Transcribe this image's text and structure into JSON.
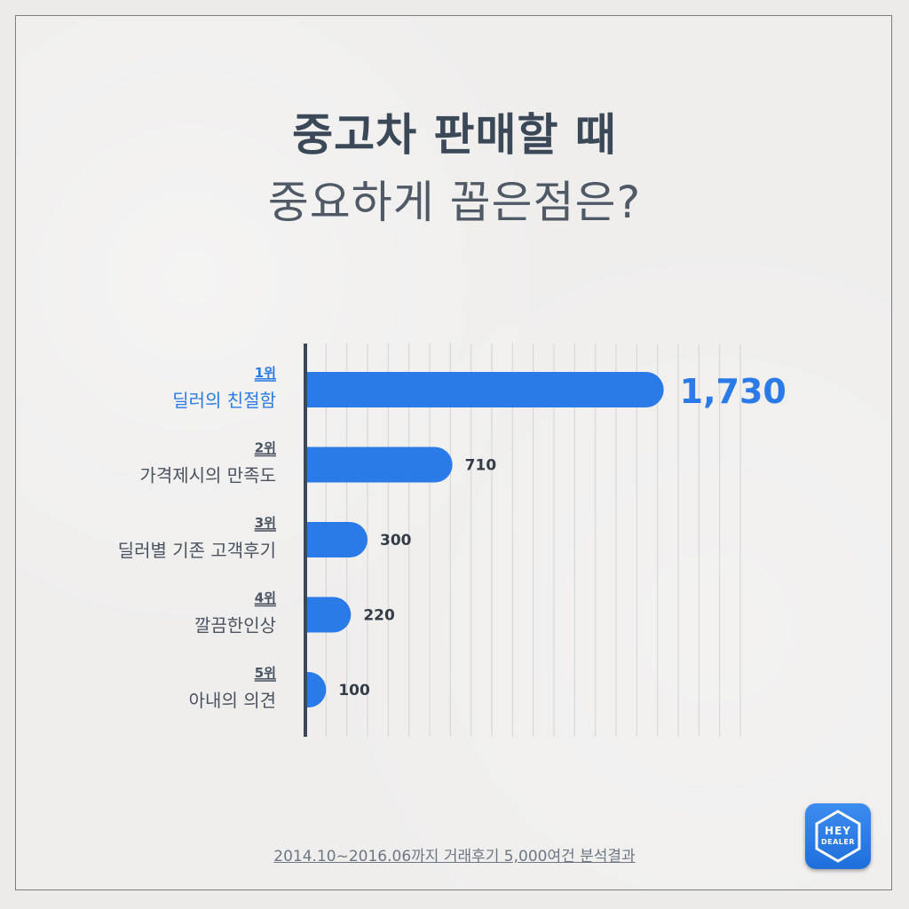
{
  "header": {
    "title": "중고차 판매할 때",
    "subtitle": "중요하게 꼽은점은?"
  },
  "chart_data": {
    "type": "bar",
    "orientation": "horizontal",
    "categories": [
      {
        "rank": "1위",
        "label": "딜러의 친절함",
        "highlight": true
      },
      {
        "rank": "2위",
        "label": "가격제시의 만족도",
        "highlight": false
      },
      {
        "rank": "3위",
        "label": "딜러별 기존 고객후기",
        "highlight": false
      },
      {
        "rank": "4위",
        "label": "깔끔한인상",
        "highlight": false
      },
      {
        "rank": "5위",
        "label": "아내의 의견",
        "highlight": false
      }
    ],
    "values": [
      1730,
      710,
      300,
      220,
      100
    ],
    "value_labels": [
      "1,730",
      "710",
      "300",
      "220",
      "100"
    ],
    "xlim": [
      0,
      2100
    ],
    "grid": true,
    "colors": {
      "bar": "#2a7ae8",
      "highlight_text": "#2a7ae8",
      "label_text": "#4a5360",
      "axis": "#3b4857",
      "grid": "#d4d4d4"
    }
  },
  "footer": {
    "note": "2014.10~2016.06까지 거래후기 5,000여건 분석결과"
  },
  "logo": {
    "line1": "HEY",
    "line2": "DEALER"
  }
}
